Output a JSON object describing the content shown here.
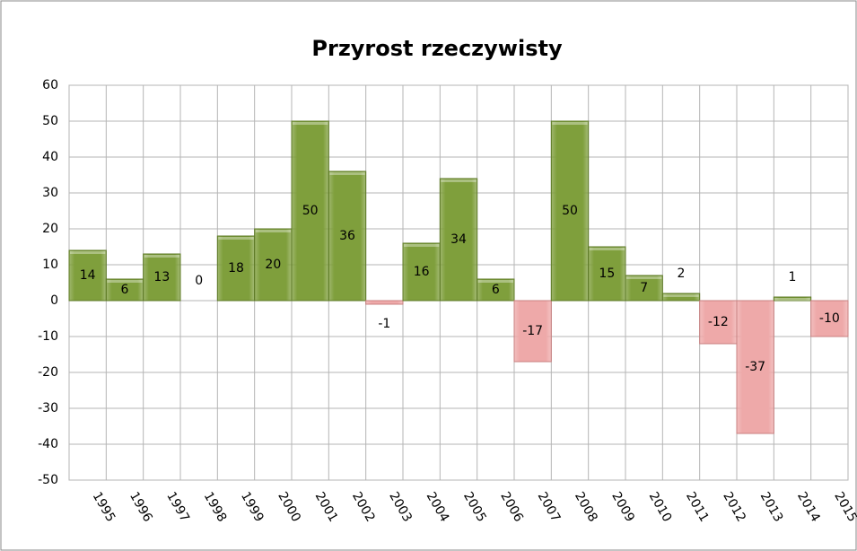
{
  "chart_data": {
    "type": "bar",
    "title": "Przyrost rzeczywisty",
    "categories": [
      "1995",
      "1996",
      "1997",
      "1998",
      "1999",
      "2000",
      "2001",
      "2002",
      "2003",
      "2004",
      "2005",
      "2006",
      "2007",
      "2008",
      "2009",
      "2010",
      "2011",
      "2012",
      "2013",
      "2014",
      "2015"
    ],
    "values": [
      14,
      6,
      13,
      0,
      18,
      20,
      50,
      36,
      -1,
      16,
      34,
      6,
      -17,
      50,
      15,
      7,
      2,
      -12,
      -37,
      1,
      -10
    ],
    "color": "#7f9f3c",
    "negative_color": "#eea9a9",
    "ylim": [
      -50,
      60
    ],
    "yticks": [
      -50,
      -40,
      -30,
      -20,
      -10,
      0,
      10,
      20,
      30,
      40,
      50,
      60
    ],
    "grid": true
  }
}
